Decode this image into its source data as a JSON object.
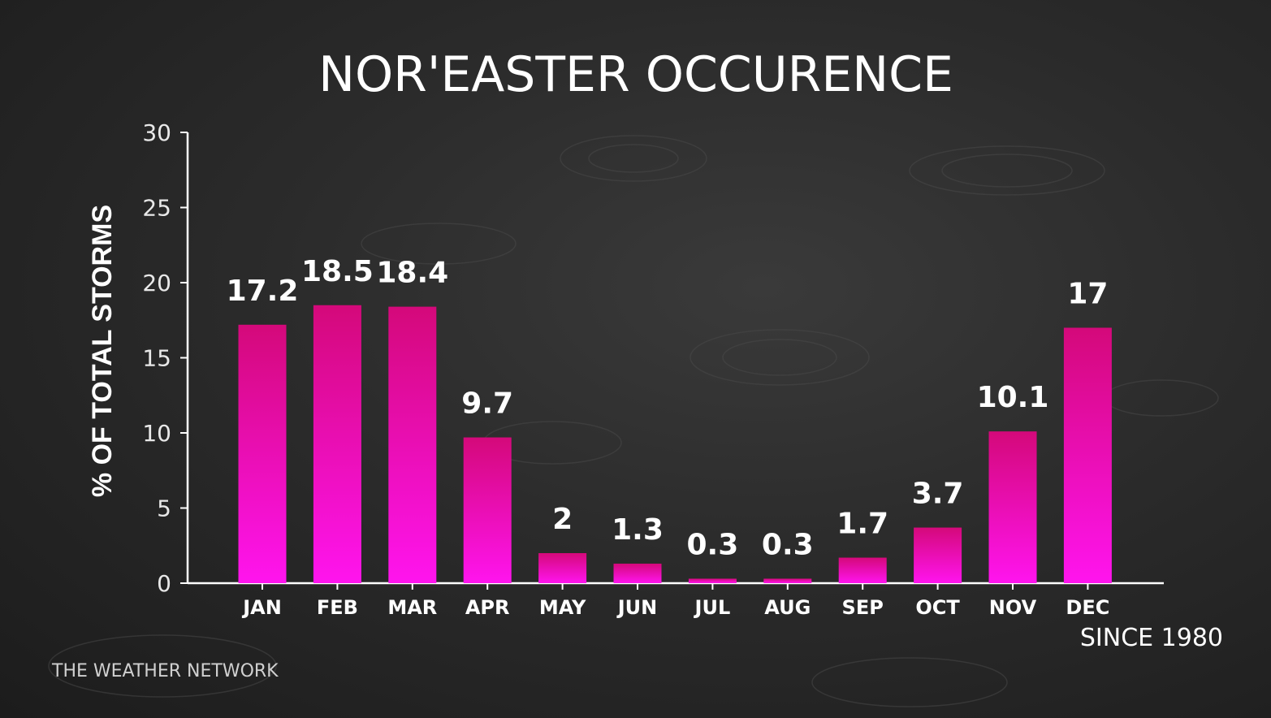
{
  "chart_data": {
    "type": "bar",
    "title": "NOR'EASTER OCCURENCE",
    "ylabel": "% OF TOTAL STORMS",
    "xlabel": "",
    "categories": [
      "JAN",
      "FEB",
      "MAR",
      "APR",
      "MAY",
      "JUN",
      "JUL",
      "AUG",
      "SEP",
      "OCT",
      "NOV",
      "DEC"
    ],
    "values": [
      17.2,
      18.5,
      18.4,
      9.7,
      2,
      1.3,
      0.3,
      0.3,
      1.7,
      3.7,
      10.1,
      17
    ],
    "value_labels": [
      "17.2",
      "18.5",
      "18.4",
      "9.7",
      "2",
      "1.3",
      "0.3",
      "0.3",
      "1.7",
      "3.7",
      "10.1",
      "17"
    ],
    "ylim": [
      0,
      30
    ],
    "yticks": [
      0,
      5,
      10,
      15,
      20,
      25,
      30
    ],
    "grid": false,
    "note": "SINCE 1980",
    "colors": {
      "bar_top": "#d4097a",
      "bar_bottom": "#ff14ee"
    }
  },
  "branding": {
    "source": "THE WEATHER NETWORK"
  }
}
